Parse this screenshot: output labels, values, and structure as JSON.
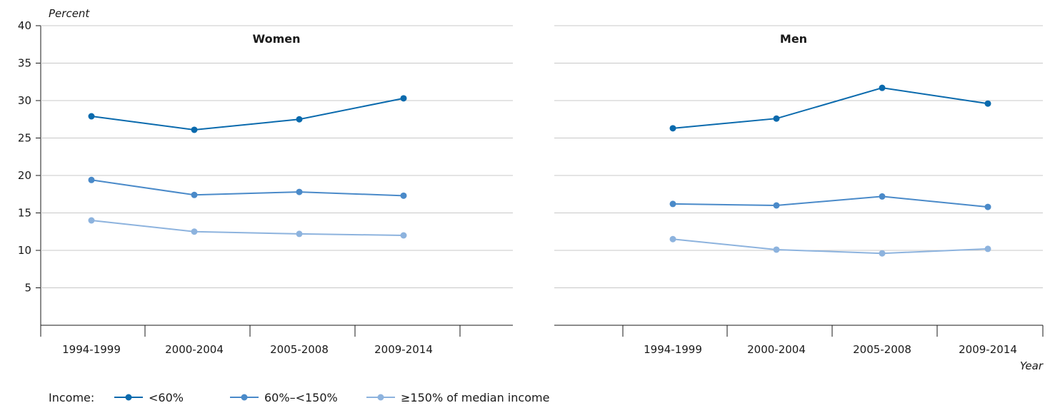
{
  "chart_data": {
    "type": "line",
    "ylabel": "Percent",
    "xlabel": "Year",
    "ylim": [
      0,
      40
    ],
    "yticks": [
      5,
      10,
      15,
      20,
      25,
      30,
      35,
      40
    ],
    "categories": [
      "1994-1999",
      "2000-2004",
      "2005-2008",
      "2009-2014"
    ],
    "grid": "horizontal",
    "legend": {
      "title": "Income:",
      "placement": "bottom-left",
      "entries": [
        "<60%",
        "60%–<150%",
        "≥150% of median income"
      ]
    },
    "colors": [
      "#0a6aad",
      "#4a8ac9",
      "#8db3de"
    ],
    "panels": [
      {
        "title": "Women",
        "series": [
          {
            "name": "<60%",
            "values": [
              27.9,
              26.1,
              27.5,
              30.3
            ]
          },
          {
            "name": "60%–<150%",
            "values": [
              19.4,
              17.4,
              17.8,
              17.3
            ]
          },
          {
            "name": "≥150% of median income",
            "values": [
              14.0,
              12.5,
              12.2,
              12.0
            ]
          }
        ]
      },
      {
        "title": "Men",
        "series": [
          {
            "name": "<60%",
            "values": [
              26.3,
              27.6,
              31.7,
              29.6
            ]
          },
          {
            "name": "60%–<150%",
            "values": [
              16.2,
              16.0,
              17.2,
              15.8
            ]
          },
          {
            "name": "≥150% of median income",
            "values": [
              11.5,
              10.1,
              9.6,
              10.2
            ]
          }
        ]
      }
    ]
  }
}
